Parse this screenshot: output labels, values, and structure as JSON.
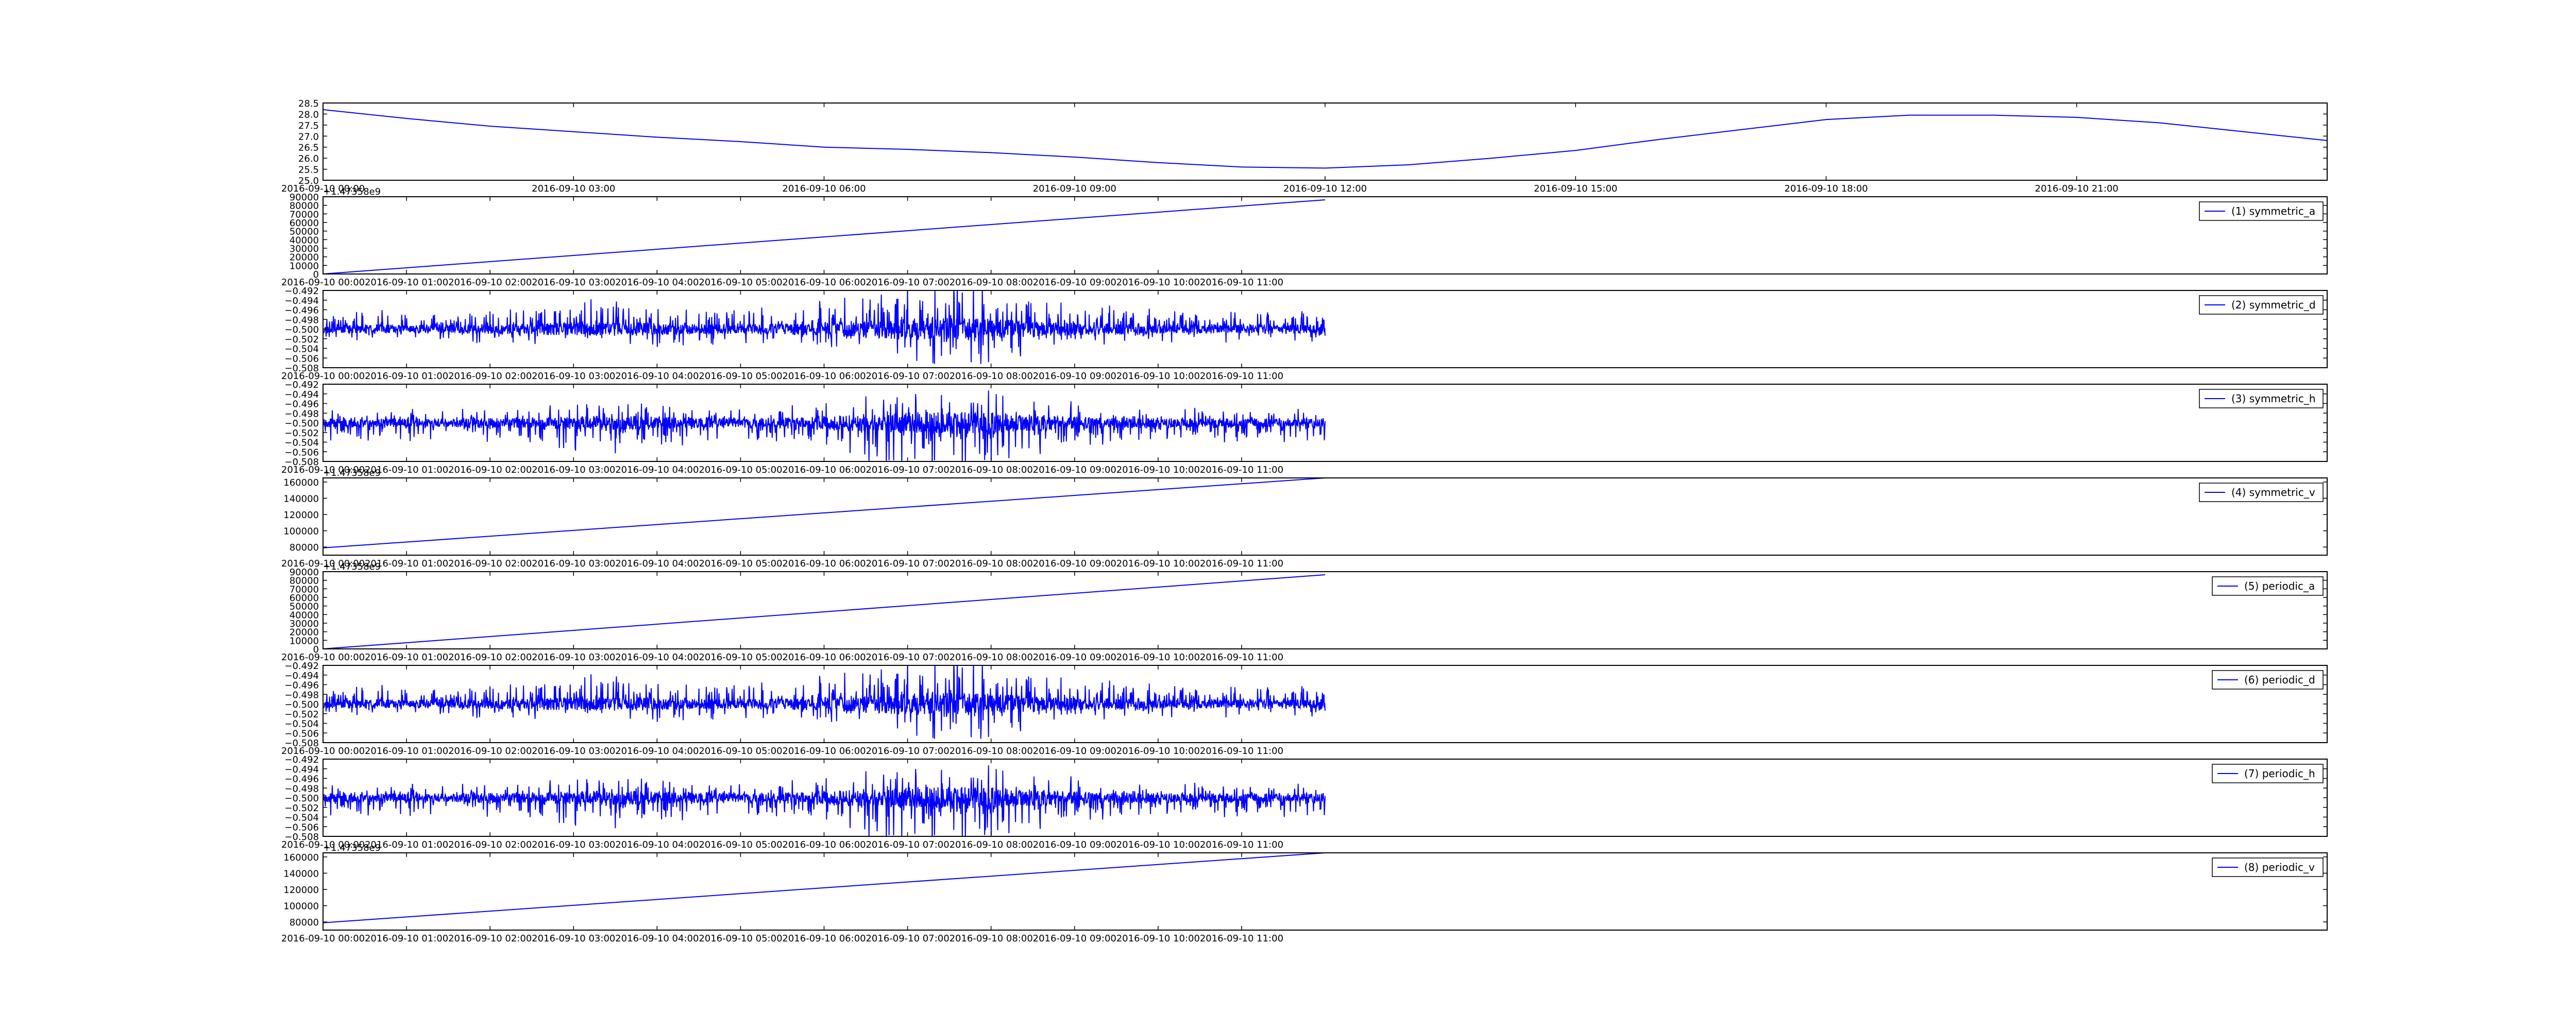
{
  "chart_data": [
    {
      "type": "line",
      "title": "",
      "offset_label": "",
      "x_range": [
        "2016-09-10 00:00",
        "2016-09-11 00:00"
      ],
      "ylim": [
        25.0,
        28.5
      ],
      "yticks": [
        "25.0",
        "25.5",
        "26.0",
        "26.5",
        "27.0",
        "27.5",
        "28.0",
        "28.5"
      ],
      "xticks": [
        "2016-09-10 00:00",
        "2016-09-10 03:00",
        "2016-09-10 06:00",
        "2016-09-10 09:00",
        "2016-09-10 12:00",
        "2016-09-10 15:00",
        "2016-09-10 18:00",
        "2016-09-10 21:00"
      ],
      "series": [
        {
          "color": "#0000ff",
          "points": [
            [
              "2016-09-10 00:00",
              28.2
            ],
            [
              "2016-09-10 01:00",
              27.8
            ],
            [
              "2016-09-10 02:00",
              27.45
            ],
            [
              "2016-09-10 03:00",
              27.2
            ],
            [
              "2016-09-10 04:00",
              26.95
            ],
            [
              "2016-09-10 05:00",
              26.75
            ],
            [
              "2016-09-10 06:00",
              26.5
            ],
            [
              "2016-09-10 07:00",
              26.4
            ],
            [
              "2016-09-10 08:00",
              26.25
            ],
            [
              "2016-09-10 09:00",
              26.05
            ],
            [
              "2016-09-10 10:00",
              25.8
            ],
            [
              "2016-09-10 11:00",
              25.6
            ],
            [
              "2016-09-10 12:00",
              25.55
            ],
            [
              "2016-09-10 13:00",
              25.7
            ],
            [
              "2016-09-10 14:00",
              26.0
            ],
            [
              "2016-09-10 15:00",
              26.35
            ],
            [
              "2016-09-10 16:00",
              26.85
            ],
            [
              "2016-09-10 17:00",
              27.3
            ],
            [
              "2016-09-10 18:00",
              27.75
            ],
            [
              "2016-09-10 19:00",
              27.95
            ],
            [
              "2016-09-10 20:00",
              27.95
            ],
            [
              "2016-09-10 21:00",
              27.85
            ],
            [
              "2016-09-10 22:00",
              27.6
            ],
            [
              "2016-09-10 23:00",
              27.2
            ],
            [
              "2016-09-11 00:00",
              26.8
            ]
          ]
        }
      ]
    },
    {
      "type": "line",
      "offset_label": "+1.47358e9",
      "legend": "(1) symmetric_a",
      "x_range": [
        "2016-09-10 00:00",
        "2016-09-11 00:00"
      ],
      "ylim": [
        0,
        90000
      ],
      "yticks": [
        "0",
        "10000",
        "20000",
        "30000",
        "40000",
        "50000",
        "60000",
        "70000",
        "80000",
        "90000"
      ],
      "xticks": [
        "2016-09-10 00:00",
        "2016-09-10 01:00",
        "2016-09-10 02:00",
        "2016-09-10 03:00",
        "2016-09-10 04:00",
        "2016-09-10 05:00",
        "2016-09-10 06:00",
        "2016-09-10 07:00",
        "2016-09-10 08:00",
        "2016-09-10 09:00",
        "2016-09-10 10:00",
        "2016-09-10 11:00"
      ],
      "series": [
        {
          "name": "(1) symmetric_a",
          "color": "#0000ff",
          "points": [
            [
              "2016-09-10 00:00",
              0
            ],
            [
              "2016-09-10 12:00",
              86400
            ]
          ]
        }
      ]
    },
    {
      "type": "line",
      "offset_label": "",
      "legend": "(2) symmetric_d",
      "x_range": [
        "2016-09-10 00:00",
        "2016-09-11 00:00"
      ],
      "ylim": [
        -0.508,
        -0.492
      ],
      "yticks": [
        "−0.508",
        "−0.506",
        "−0.504",
        "−0.502",
        "−0.500",
        "−0.498",
        "−0.496",
        "−0.494",
        "−0.492"
      ],
      "xticks": [
        "2016-09-10 00:00",
        "2016-09-10 01:00",
        "2016-09-10 02:00",
        "2016-09-10 03:00",
        "2016-09-10 04:00",
        "2016-09-10 05:00",
        "2016-09-10 06:00",
        "2016-09-10 07:00",
        "2016-09-10 08:00",
        "2016-09-10 09:00",
        "2016-09-10 10:00",
        "2016-09-10 11:00"
      ],
      "series": [
        {
          "name": "(2) symmetric_d",
          "color": "#0000ff",
          "noise": {
            "center": -0.5,
            "seed": 11,
            "bias": 1
          }
        }
      ]
    },
    {
      "type": "line",
      "offset_label": "",
      "legend": "(3) symmetric_h",
      "x_range": [
        "2016-09-10 00:00",
        "2016-09-11 00:00"
      ],
      "ylim": [
        -0.508,
        -0.492
      ],
      "yticks": [
        "−0.508",
        "−0.506",
        "−0.504",
        "−0.502",
        "−0.500",
        "−0.498",
        "−0.496",
        "−0.494",
        "−0.492"
      ],
      "xticks": [
        "2016-09-10 00:00",
        "2016-09-10 01:00",
        "2016-09-10 02:00",
        "2016-09-10 03:00",
        "2016-09-10 04:00",
        "2016-09-10 05:00",
        "2016-09-10 06:00",
        "2016-09-10 07:00",
        "2016-09-10 08:00",
        "2016-09-10 09:00",
        "2016-09-10 10:00",
        "2016-09-10 11:00"
      ],
      "series": [
        {
          "name": "(3) symmetric_h",
          "color": "#0000ff",
          "noise": {
            "center": -0.5,
            "seed": 23,
            "bias": -1
          }
        }
      ]
    },
    {
      "type": "line",
      "offset_label": "+1.47358e9",
      "legend": "(4) symmetric_v",
      "x_range": [
        "2016-09-10 00:00",
        "2016-09-11 00:00"
      ],
      "ylim": [
        70000,
        165000
      ],
      "yticks": [
        "80000",
        "100000",
        "120000",
        "140000",
        "160000"
      ],
      "xticks": [
        "2016-09-10 00:00",
        "2016-09-10 01:00",
        "2016-09-10 02:00",
        "2016-09-10 03:00",
        "2016-09-10 04:00",
        "2016-09-10 05:00",
        "2016-09-10 06:00",
        "2016-09-10 07:00",
        "2016-09-10 08:00",
        "2016-09-10 09:00",
        "2016-09-10 10:00",
        "2016-09-10 11:00"
      ],
      "series": [
        {
          "name": "(4) symmetric_v",
          "color": "#0000ff",
          "points": [
            [
              "2016-09-10 00:00",
              79000
            ],
            [
              "2016-09-10 12:00",
              165000
            ]
          ]
        }
      ]
    },
    {
      "type": "line",
      "offset_label": "+1.47358e9",
      "legend": "(5) periodic_a",
      "x_range": [
        "2016-09-10 00:00",
        "2016-09-11 00:00"
      ],
      "ylim": [
        0,
        90000
      ],
      "yticks": [
        "0",
        "10000",
        "20000",
        "30000",
        "40000",
        "50000",
        "60000",
        "70000",
        "80000",
        "90000"
      ],
      "xticks": [
        "2016-09-10 00:00",
        "2016-09-10 01:00",
        "2016-09-10 02:00",
        "2016-09-10 03:00",
        "2016-09-10 04:00",
        "2016-09-10 05:00",
        "2016-09-10 06:00",
        "2016-09-10 07:00",
        "2016-09-10 08:00",
        "2016-09-10 09:00",
        "2016-09-10 10:00",
        "2016-09-10 11:00"
      ],
      "series": [
        {
          "name": "(5) periodic_a",
          "color": "#0000ff",
          "points": [
            [
              "2016-09-10 00:00",
              0
            ],
            [
              "2016-09-10 12:00",
              86400
            ]
          ]
        }
      ]
    },
    {
      "type": "line",
      "offset_label": "",
      "legend": "(6) periodic_d",
      "x_range": [
        "2016-09-10 00:00",
        "2016-09-11 00:00"
      ],
      "ylim": [
        -0.508,
        -0.492
      ],
      "yticks": [
        "−0.508",
        "−0.506",
        "−0.504",
        "−0.502",
        "−0.500",
        "−0.498",
        "−0.496",
        "−0.494",
        "−0.492"
      ],
      "xticks": [
        "2016-09-10 00:00",
        "2016-09-10 01:00",
        "2016-09-10 02:00",
        "2016-09-10 03:00",
        "2016-09-10 04:00",
        "2016-09-10 05:00",
        "2016-09-10 06:00",
        "2016-09-10 07:00",
        "2016-09-10 08:00",
        "2016-09-10 09:00",
        "2016-09-10 10:00",
        "2016-09-10 11:00"
      ],
      "series": [
        {
          "name": "(6) periodic_d",
          "color": "#0000ff",
          "noise": {
            "center": -0.5,
            "seed": 11,
            "bias": 1
          }
        }
      ]
    },
    {
      "type": "line",
      "offset_label": "",
      "legend": "(7) periodic_h",
      "x_range": [
        "2016-09-10 00:00",
        "2016-09-11 00:00"
      ],
      "ylim": [
        -0.508,
        -0.492
      ],
      "yticks": [
        "−0.508",
        "−0.506",
        "−0.504",
        "−0.502",
        "−0.500",
        "−0.498",
        "−0.496",
        "−0.494",
        "−0.492"
      ],
      "xticks": [
        "2016-09-10 00:00",
        "2016-09-10 01:00",
        "2016-09-10 02:00",
        "2016-09-10 03:00",
        "2016-09-10 04:00",
        "2016-09-10 05:00",
        "2016-09-10 06:00",
        "2016-09-10 07:00",
        "2016-09-10 08:00",
        "2016-09-10 09:00",
        "2016-09-10 10:00",
        "2016-09-10 11:00"
      ],
      "series": [
        {
          "name": "(7) periodic_h",
          "color": "#0000ff",
          "noise": {
            "center": -0.5,
            "seed": 23,
            "bias": -1
          }
        }
      ]
    },
    {
      "type": "line",
      "offset_label": "+1.47358e9",
      "legend": "(8) periodic_v",
      "x_range": [
        "2016-09-10 00:00",
        "2016-09-11 00:00"
      ],
      "ylim": [
        70000,
        165000
      ],
      "yticks": [
        "80000",
        "100000",
        "120000",
        "140000",
        "160000"
      ],
      "xticks": [
        "2016-09-10 00:00",
        "2016-09-10 01:00",
        "2016-09-10 02:00",
        "2016-09-10 03:00",
        "2016-09-10 04:00",
        "2016-09-10 05:00",
        "2016-09-10 06:00",
        "2016-09-10 07:00",
        "2016-09-10 08:00",
        "2016-09-10 09:00",
        "2016-09-10 10:00",
        "2016-09-10 11:00"
      ],
      "series": [
        {
          "name": "(8) periodic_v",
          "color": "#0000ff",
          "points": [
            [
              "2016-09-10 00:00",
              79000
            ],
            [
              "2016-09-10 12:00",
              165000
            ]
          ]
        }
      ]
    }
  ]
}
